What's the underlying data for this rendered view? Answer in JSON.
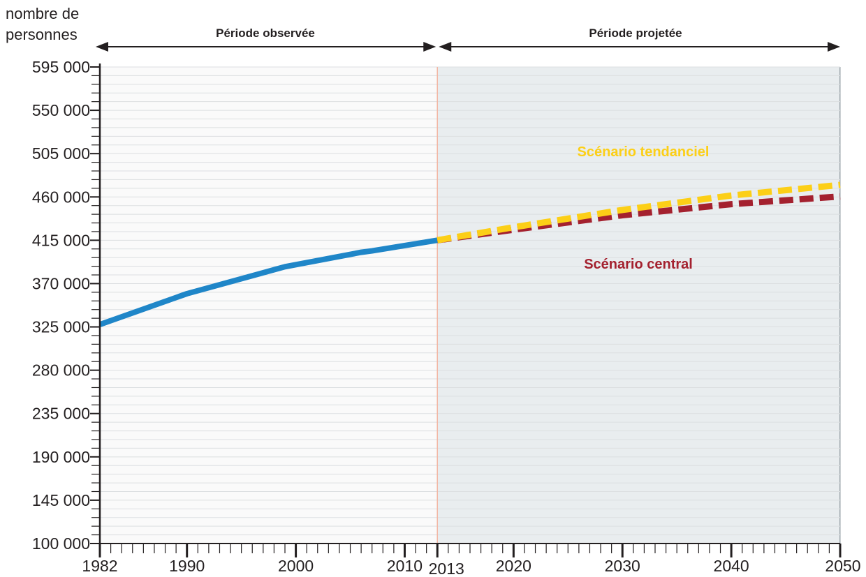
{
  "chart_data": {
    "type": "line",
    "ylabel_line1": "nombre de",
    "ylabel_line2": "personnes",
    "xlim": [
      1982,
      2050
    ],
    "ylim": [
      100000,
      595000
    ],
    "y_ticks": [
      {
        "value": 100000,
        "label": "100 000"
      },
      {
        "value": 145000,
        "label": "145 000"
      },
      {
        "value": 190000,
        "label": "190 000"
      },
      {
        "value": 235000,
        "label": "235 000"
      },
      {
        "value": 280000,
        "label": "280 000"
      },
      {
        "value": 325000,
        "label": "325 000"
      },
      {
        "value": 370000,
        "label": "370 000"
      },
      {
        "value": 415000,
        "label": "415 000"
      },
      {
        "value": 460000,
        "label": "460 000"
      },
      {
        "value": 505000,
        "label": "505 000"
      },
      {
        "value": 550000,
        "label": "550 000"
      },
      {
        "value": 595000,
        "label": "595 000"
      }
    ],
    "x_ticks": [
      {
        "value": 1982,
        "label": "1982"
      },
      {
        "value": 1990,
        "label": "1990"
      },
      {
        "value": 2000,
        "label": "2000"
      },
      {
        "value": 2010,
        "label": "2010"
      },
      {
        "value": 2013,
        "label": "2013",
        "highlight": true
      },
      {
        "value": 2020,
        "label": "2020"
      },
      {
        "value": 2030,
        "label": "2030"
      },
      {
        "value": 2040,
        "label": "2040"
      },
      {
        "value": 2050,
        "label": "2050"
      }
    ],
    "periods": {
      "observed_label": "Période observée",
      "projected_label": "Période projetée",
      "split_year": 2013
    },
    "series": [
      {
        "key": "observed",
        "style": "solid",
        "color": "#1f86c8",
        "points": [
          [
            1982,
            327500
          ],
          [
            1990,
            359500
          ],
          [
            1999,
            387500
          ],
          [
            2006,
            402500
          ],
          [
            2007,
            404000
          ],
          [
            2013,
            415000
          ]
        ]
      },
      {
        "key": "central",
        "name": "Scénario central",
        "style": "dashed",
        "color": "#a4212f",
        "points": [
          [
            2013,
            415000
          ],
          [
            2020,
            426000
          ],
          [
            2030,
            441000
          ],
          [
            2040,
            452500
          ],
          [
            2050,
            460500
          ]
        ]
      },
      {
        "key": "tendanciel",
        "name": "Scénario tendanciel",
        "style": "dashed",
        "color": "#fccf17",
        "points": [
          [
            2013,
            415000
          ],
          [
            2020,
            428500
          ],
          [
            2030,
            446500
          ],
          [
            2040,
            461500
          ],
          [
            2050,
            472500
          ]
        ]
      }
    ],
    "colors": {
      "projected_bg": "#e9edef",
      "observed_bg": "#fafafa",
      "split_line": "#f2b5a3",
      "highlight_tick": "#e63b24",
      "text": "#231f20"
    }
  }
}
